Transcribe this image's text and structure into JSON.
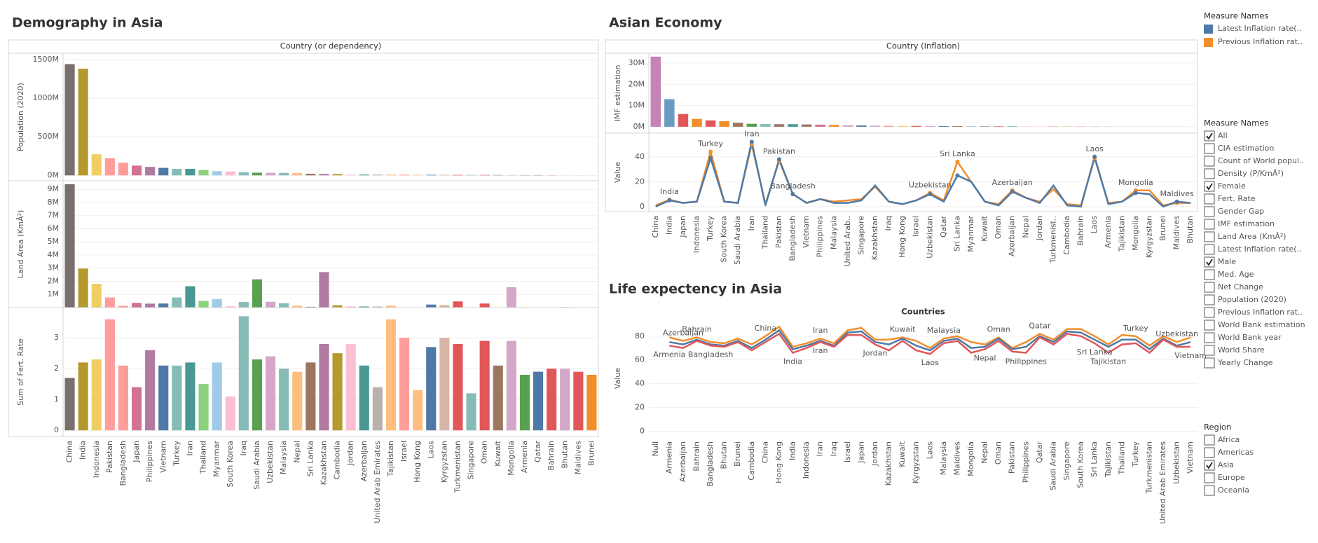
{
  "chart_data": [
    {
      "type": "bar",
      "title": "Demography in Asia",
      "header": "Country (or dependency)",
      "categories": [
        "China",
        "India",
        "Indonesia",
        "Pakistan",
        "Bangladesh",
        "Japan",
        "Philippines",
        "Vietnam",
        "Turkey",
        "Iran",
        "Thailand",
        "Myanmar",
        "South Korea",
        "Iraq",
        "Saudi Arabia",
        "Uzbekistan",
        "Malaysia",
        "Nepal",
        "Sri Lanka",
        "Kazakhstan",
        "Cambodia",
        "Jordan",
        "Azerbaijan",
        "United Arab Emirates",
        "Tajikistan",
        "Israel",
        "Hong Kong",
        "Laos",
        "Kyrgyzstan",
        "Turkmenistan",
        "Singapore",
        "Oman",
        "Kuwait",
        "Mongolia",
        "Armenia",
        "Qatar",
        "Bahrain",
        "Bhutan",
        "Maldives",
        "Brunei"
      ],
      "colors": [
        "#79706e",
        "#b6992d",
        "#f1ce63",
        "#ff9d9a",
        "#ff9d9a",
        "#d37295",
        "#b07aa1",
        "#4e79a7",
        "#86bcb6",
        "#499894",
        "#8cd17d",
        "#a0cbe8",
        "#fabfd2",
        "#86bcb6",
        "#59a14f",
        "#d4a6c8",
        "#86bcb6",
        "#ffbe7d",
        "#9d7660",
        "#b07aa1",
        "#b6992d",
        "#fabfd2",
        "#499894",
        "#bab0ac",
        "#ffbe7d",
        "#ff9d9a",
        "#ffbe7d",
        "#4e79a7",
        "#d7b5a6",
        "#e15759",
        "#86bcb6",
        "#e15759",
        "#9d7660",
        "#d4a6c8",
        "#59a14f",
        "#4e79a7",
        "#e15759",
        "#d4a6c8",
        "#e15759",
        "#f28e2b"
      ],
      "panels": [
        {
          "type": "bar",
          "ylabel": "Population (2020)",
          "ylim": [
            -70,
            1580
          ],
          "yticks": [
            {
              "value": 0,
              "label": "0M"
            },
            {
              "value": 500,
              "label": "500M"
            },
            {
              "value": 1000,
              "label": "1000M"
            },
            {
              "value": 1500,
              "label": "1500M"
            }
          ],
          "values": [
            1439,
            1380,
            273,
            221,
            165,
            126,
            110,
            97,
            84,
            84,
            70,
            54,
            51,
            40,
            35,
            33,
            32,
            29,
            21,
            19,
            17,
            10,
            10,
            10,
            10,
            9,
            7.5,
            7,
            6.5,
            6,
            5.9,
            5,
            4.3,
            3.3,
            3,
            2.9,
            1.7,
            0.8,
            0.5,
            0.4
          ]
        },
        {
          "type": "bar",
          "ylabel": "Land Area (KmÂ²)",
          "ylim": [
            0,
            9.65
          ],
          "yticks": [
            {
              "value": 1,
              "label": "1M"
            },
            {
              "value": 2,
              "label": "2M"
            },
            {
              "value": 3,
              "label": "3M"
            },
            {
              "value": 4,
              "label": "4M"
            },
            {
              "value": 5,
              "label": "5M"
            },
            {
              "value": 6,
              "label": "6M"
            },
            {
              "value": 7,
              "label": "7M"
            },
            {
              "value": 8,
              "label": "8M"
            },
            {
              "value": 9,
              "label": "9M"
            }
          ],
          "values": [
            9.39,
            2.97,
            1.81,
            0.77,
            0.13,
            0.36,
            0.3,
            0.31,
            0.77,
            1.63,
            0.51,
            0.65,
            0.1,
            0.43,
            2.15,
            0.44,
            0.33,
            0.14,
            0.06,
            2.7,
            0.18,
            0.09,
            0.08,
            0.08,
            0.14,
            0.02,
            0.001,
            0.23,
            0.19,
            0.47,
            0.001,
            0.31,
            0.02,
            1.55,
            0.03,
            0.01,
            0.001,
            0.04,
            0.0003,
            0.005
          ]
        },
        {
          "type": "bar",
          "ylabel": "Sum of Fert. Rate",
          "ylim": [
            -0.2,
            3.98
          ],
          "yticks": [
            0,
            1,
            2,
            3
          ],
          "values": [
            1.7,
            2.2,
            2.3,
            3.6,
            2.1,
            1.4,
            2.6,
            2.1,
            2.1,
            2.2,
            1.5,
            2.2,
            1.1,
            3.7,
            2.3,
            2.4,
            2.0,
            1.9,
            2.2,
            2.8,
            2.5,
            2.8,
            2.1,
            1.4,
            3.6,
            3.0,
            1.3,
            2.7,
            3.0,
            2.8,
            1.2,
            2.9,
            2.1,
            2.9,
            1.8,
            1.9,
            2.0,
            2.0,
            1.9,
            1.8
          ]
        }
      ]
    },
    {
      "type": "combo",
      "title": "Asian Economy",
      "header": "Country (Inflation)",
      "legend_title": "Measure Names",
      "categories": [
        "China",
        "India",
        "Japan",
        "Indonesia",
        "Turkey",
        "South Korea",
        "Saudi Arabia",
        "Iran",
        "Thailand",
        "Pakistan",
        "Bangladesh",
        "Vietnam",
        "Philippines",
        "Malaysia",
        "United Arab..",
        "Singapore",
        "Kazakhstan",
        "Iraq",
        "Hong Kong",
        "Israel",
        "Uzbekistan",
        "Qatar",
        "Sri Lanka",
        "Myanmar",
        "Kuwait",
        "Oman",
        "Azerbaijan",
        "Nepal",
        "Jordan",
        "Turkmenist..",
        "Cambodia",
        "Bahrain",
        "Laos",
        "Armenia",
        "Tajikistan",
        "Mongolia",
        "Kyrgyzstan",
        "Brunei",
        "Maldives",
        "Bhutan"
      ],
      "colors": [
        "#c583b8",
        "#6a9bc3",
        "#e15759",
        "#f28e2b",
        "#e15759",
        "#f28e2b",
        "#9d7660",
        "#59a14f",
        "#86bcb6",
        "#9d7660",
        "#499894",
        "#9d7660",
        "#d37295",
        "#f28e2b",
        "#d4a6c8",
        "#4e79a7",
        "#d4a6c8",
        "#ff9d9a",
        "#ffbe7d",
        "#e15759",
        "#d4a6c8",
        "#4e79a7",
        "#9d7660",
        "#a0cbe8",
        "#9d7660",
        "#e15759",
        "#499894",
        "#ffbe7d",
        "#fabfd2",
        "#e15759",
        "#b6992d",
        "#e15759",
        "#4e79a7",
        "#59a14f",
        "#ffbe7d",
        "#d4a6c8",
        "#d7b5a6",
        "#f28e2b",
        "#e15759",
        "#d4a6c8"
      ],
      "panels": [
        {
          "type": "bar",
          "ylabel": "IMF estimation",
          "ylim": [
            -3,
            34.6
          ],
          "yticks": [
            {
              "value": 0,
              "label": "0M"
            },
            {
              "value": 10,
              "label": "10M"
            },
            {
              "value": 20,
              "label": "20M"
            },
            {
              "value": 30,
              "label": "30M"
            }
          ],
          "values": [
            33,
            13,
            6,
            3.7,
            3,
            2.6,
            1.9,
            1.4,
            1.3,
            1.2,
            1.2,
            1.1,
            1.0,
            0.9,
            0.7,
            0.6,
            0.5,
            0.45,
            0.4,
            0.4,
            0.3,
            0.3,
            0.3,
            0.28,
            0.2,
            0.2,
            0.17,
            0.13,
            0.11,
            0.1,
            0.09,
            0.08,
            0.06,
            0.05,
            0.03,
            0.04,
            0.03,
            0.03,
            0.02,
            0.01
          ]
        },
        {
          "type": "line",
          "ylabel": "Value",
          "ylim": [
            -4,
            59
          ],
          "yticks": [
            0,
            20,
            40
          ],
          "markers": true,
          "series": [
            {
              "name": "Previous Inflation rat..",
              "color": "#f28e2b",
              "values": [
                1,
                5.5,
                3,
                4,
                44,
                4,
                3,
                50,
                2,
                37,
                10,
                3,
                6,
                4,
                5,
                6,
                16,
                4,
                2,
                5,
                11,
                5,
                36,
                20,
                4,
                2,
                13,
                7,
                4,
                14,
                2,
                1,
                39,
                3,
                4,
                13,
                13,
                1,
                3,
                3
              ]
            },
            {
              "name": "Latest Inflation rate(..",
              "color": "#4e79a7",
              "values": [
                0,
                5,
                3,
                4,
                39,
                4,
                3,
                52,
                1,
                38,
                10,
                3,
                6,
                3,
                3,
                5,
                17,
                4,
                2,
                5,
                10,
                4,
                25,
                20,
                4,
                1,
                12,
                7,
                3,
                17,
                1,
                0,
                40,
                2,
                4,
                11,
                10,
                0,
                4,
                3
              ]
            }
          ],
          "labels_above": [
            null,
            "India",
            null,
            null,
            "Turkey",
            null,
            null,
            "Iran",
            null,
            "Pakistan",
            "Bangladesh",
            null,
            null,
            null,
            null,
            null,
            null,
            null,
            null,
            null,
            "Uzbekistan",
            null,
            "Sri Lanka",
            null,
            null,
            null,
            "Azerbaijan",
            null,
            null,
            null,
            null,
            null,
            "Laos",
            null,
            null,
            "Mongolia",
            null,
            null,
            "Maldives",
            null
          ]
        }
      ]
    },
    {
      "type": "line",
      "title": "Life expectency in Asia",
      "header": "Countries",
      "categories": [
        "Null",
        "Armenia",
        "Azerbaijan",
        "Bahrain",
        "Bangladesh",
        "Bhutan",
        "Brunei",
        "Cambodia",
        "China",
        "Hong Kong",
        "India",
        "Indonesia",
        "Iran",
        "Iraq",
        "Israel",
        "Japan",
        "Jordan",
        "Kazakhstan",
        "Kuwait",
        "Kyrgyzstan",
        "Laos",
        "Malaysia",
        "Maldives",
        "Mongolia",
        "Nepal",
        "Oman",
        "Pakistan",
        "Philippines",
        "Qatar",
        "Saudi Arabia",
        "Singapore",
        "South Korea",
        "Sri Lanka",
        "Tajikistan",
        "Thailand",
        "Turkey",
        "Turkmenistan",
        "United Arab Emirates",
        "Uzbekistan",
        "Vietnam"
      ],
      "panels": [
        {
          "type": "line",
          "ylabel": "Value",
          "ylim": [
            -5,
            94
          ],
          "yticks": [
            0,
            20,
            40,
            60,
            80
          ],
          "series": [
            {
              "name": "Female",
              "color": "#f28e2b",
              "values": [
                null,
                79,
                76,
                79,
                75,
                74,
                78,
                73,
                80,
                88,
                71,
                74,
                78,
                74,
                85,
                87,
                77,
                77,
                79,
                76,
                70,
                78,
                80,
                75,
                73,
                79,
                70,
                75,
                82,
                77,
                86,
                86,
                80,
                73,
                81,
                80,
                72,
                80,
                75,
                79
              ]
            },
            {
              "name": "All",
              "color": "#4e79a7",
              "values": [
                null,
                75,
                73,
                77,
                73,
                72,
                76,
                70,
                77,
                85,
                69,
                72,
                76,
                72,
                83,
                84,
                75,
                73,
                78,
                72,
                68,
                76,
                78,
                70,
                71,
                78,
                69,
                71,
                80,
                75,
                84,
                83,
                77,
                71,
                77,
                77,
                69,
                78,
                72,
                75
              ]
            },
            {
              "name": "Male",
              "color": "#e15759",
              "values": [
                null,
                72,
                70,
                76,
                72,
                71,
                75,
                68,
                75,
                82,
                66,
                70,
                75,
                71,
                81,
                81,
                73,
                68,
                76,
                68,
                65,
                74,
                76,
                66,
                69,
                76,
                67,
                66,
                79,
                73,
                82,
                80,
                74,
                66,
                73,
                74,
                66,
                77,
                71,
                71
              ]
            }
          ],
          "labels_above": [
            null,
            null,
            "Azerbaijan",
            "Bahrain",
            null,
            null,
            null,
            null,
            "China",
            null,
            null,
            null,
            "Iran",
            null,
            null,
            null,
            null,
            null,
            "Kuwait",
            null,
            null,
            "Malaysia",
            null,
            null,
            null,
            "Oman",
            null,
            null,
            "Qatar",
            null,
            null,
            null,
            null,
            null,
            null,
            "Turkey",
            null,
            null,
            "Uzbekistan",
            null
          ],
          "labels_below": [
            null,
            "Armenia",
            null,
            null,
            "Bangladesh",
            null,
            null,
            null,
            null,
            null,
            "India",
            null,
            "Iran",
            null,
            null,
            null,
            "Jordan",
            null,
            null,
            null,
            "Laos",
            null,
            null,
            null,
            "Nepal",
            null,
            null,
            "Philippines",
            null,
            null,
            null,
            null,
            "Sri Lanka",
            "Tajikistan",
            null,
            null,
            null,
            null,
            null,
            "Vietnam"
          ]
        }
      ]
    }
  ],
  "filters": [
    {
      "title": "Measure Names",
      "items": [
        {
          "label": "All",
          "checked": true
        },
        {
          "label": "CIA estimation",
          "checked": false
        },
        {
          "label": "Count of World popul..",
          "checked": false
        },
        {
          "label": "Density (P/KmÂ²)",
          "checked": false
        },
        {
          "label": "Female",
          "checked": true
        },
        {
          "label": "Fert. Rate",
          "checked": false
        },
        {
          "label": "Gender Gap",
          "checked": false
        },
        {
          "label": "IMF estimation",
          "checked": false
        },
        {
          "label": "Land Area (KmÂ²)",
          "checked": false
        },
        {
          "label": "Latest Inflation rate(..",
          "checked": false
        },
        {
          "label": "Male",
          "checked": true
        },
        {
          "label": "Med. Age",
          "checked": false
        },
        {
          "label": "Net Change",
          "checked": false
        },
        {
          "label": "Population (2020)",
          "checked": false
        },
        {
          "label": "Previous Inflation rat..",
          "checked": false
        },
        {
          "label": "World Bank estimation",
          "checked": false
        },
        {
          "label": "World Bank year",
          "checked": false
        },
        {
          "label": "World Share",
          "checked": false
        },
        {
          "label": "Yearly Change",
          "checked": false
        }
      ]
    },
    {
      "title": "Region",
      "items": [
        {
          "label": "Africa",
          "checked": false
        },
        {
          "label": "Americas",
          "checked": false
        },
        {
          "label": "Asia",
          "checked": true
        },
        {
          "label": "Europe",
          "checked": false
        },
        {
          "label": "Oceania",
          "checked": false
        }
      ]
    }
  ]
}
